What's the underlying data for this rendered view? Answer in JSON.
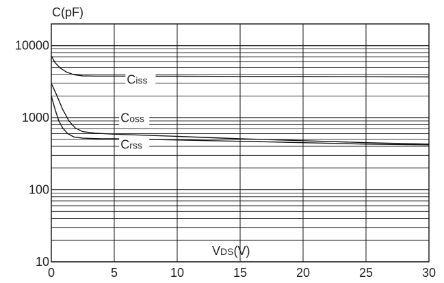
{
  "chart_data": {
    "type": "line",
    "title": "",
    "ylabel": "C(pF)",
    "xlabel_main": "V",
    "xlabel_sub": "DS",
    "xlabel_unit": "(V)",
    "x_scale": "linear",
    "y_scale": "log",
    "xlim": [
      0,
      30
    ],
    "ylim": [
      10,
      20000
    ],
    "grid": true,
    "x_ticks": [
      0,
      5,
      10,
      15,
      20,
      25,
      30
    ],
    "x_tick_labels": [
      "0",
      "5",
      "10",
      "15",
      "20",
      "25",
      "30"
    ],
    "y_ticks": [
      10,
      100,
      1000,
      10000
    ],
    "y_tick_labels": [
      "10",
      "100",
      "1000",
      "10000"
    ],
    "series": [
      {
        "name": "Ciss",
        "label_main": "C",
        "label_sub": "iss",
        "x": [
          0,
          0.3,
          0.7,
          1.2,
          1.8,
          2.5,
          3.5,
          5,
          10,
          15,
          20,
          25,
          30
        ],
        "y": [
          7200,
          5800,
          4900,
          4300,
          3950,
          3800,
          3780,
          3780,
          3760,
          3740,
          3720,
          3700,
          3680
        ]
      },
      {
        "name": "Coss",
        "label_main": "C",
        "label_sub": "oss",
        "x": [
          0,
          0.4,
          0.9,
          1.4,
          1.9,
          2.5,
          3.5,
          5,
          10,
          15,
          20,
          25,
          30
        ],
        "y": [
          3000,
          2100,
          1300,
          900,
          720,
          640,
          610,
          590,
          550,
          510,
          480,
          450,
          430
        ]
      },
      {
        "name": "Crss",
        "label_main": "C",
        "label_sub": "rss",
        "x": [
          0,
          0.3,
          0.6,
          0.9,
          1.3,
          1.8,
          2.5,
          4,
          5,
          10,
          15,
          20,
          25,
          30
        ],
        "y": [
          2000,
          1300,
          900,
          720,
          600,
          540,
          520,
          510,
          510,
          490,
          470,
          450,
          430,
          420
        ]
      }
    ],
    "annotations": [
      {
        "series": "Ciss",
        "x": 6.0,
        "y": 2950
      },
      {
        "series": "Coss",
        "x": 5.5,
        "y": 870
      },
      {
        "series": "Crss",
        "x": 5.5,
        "y": 370
      }
    ],
    "line_color": "#111111",
    "grid_color": "#111111"
  }
}
